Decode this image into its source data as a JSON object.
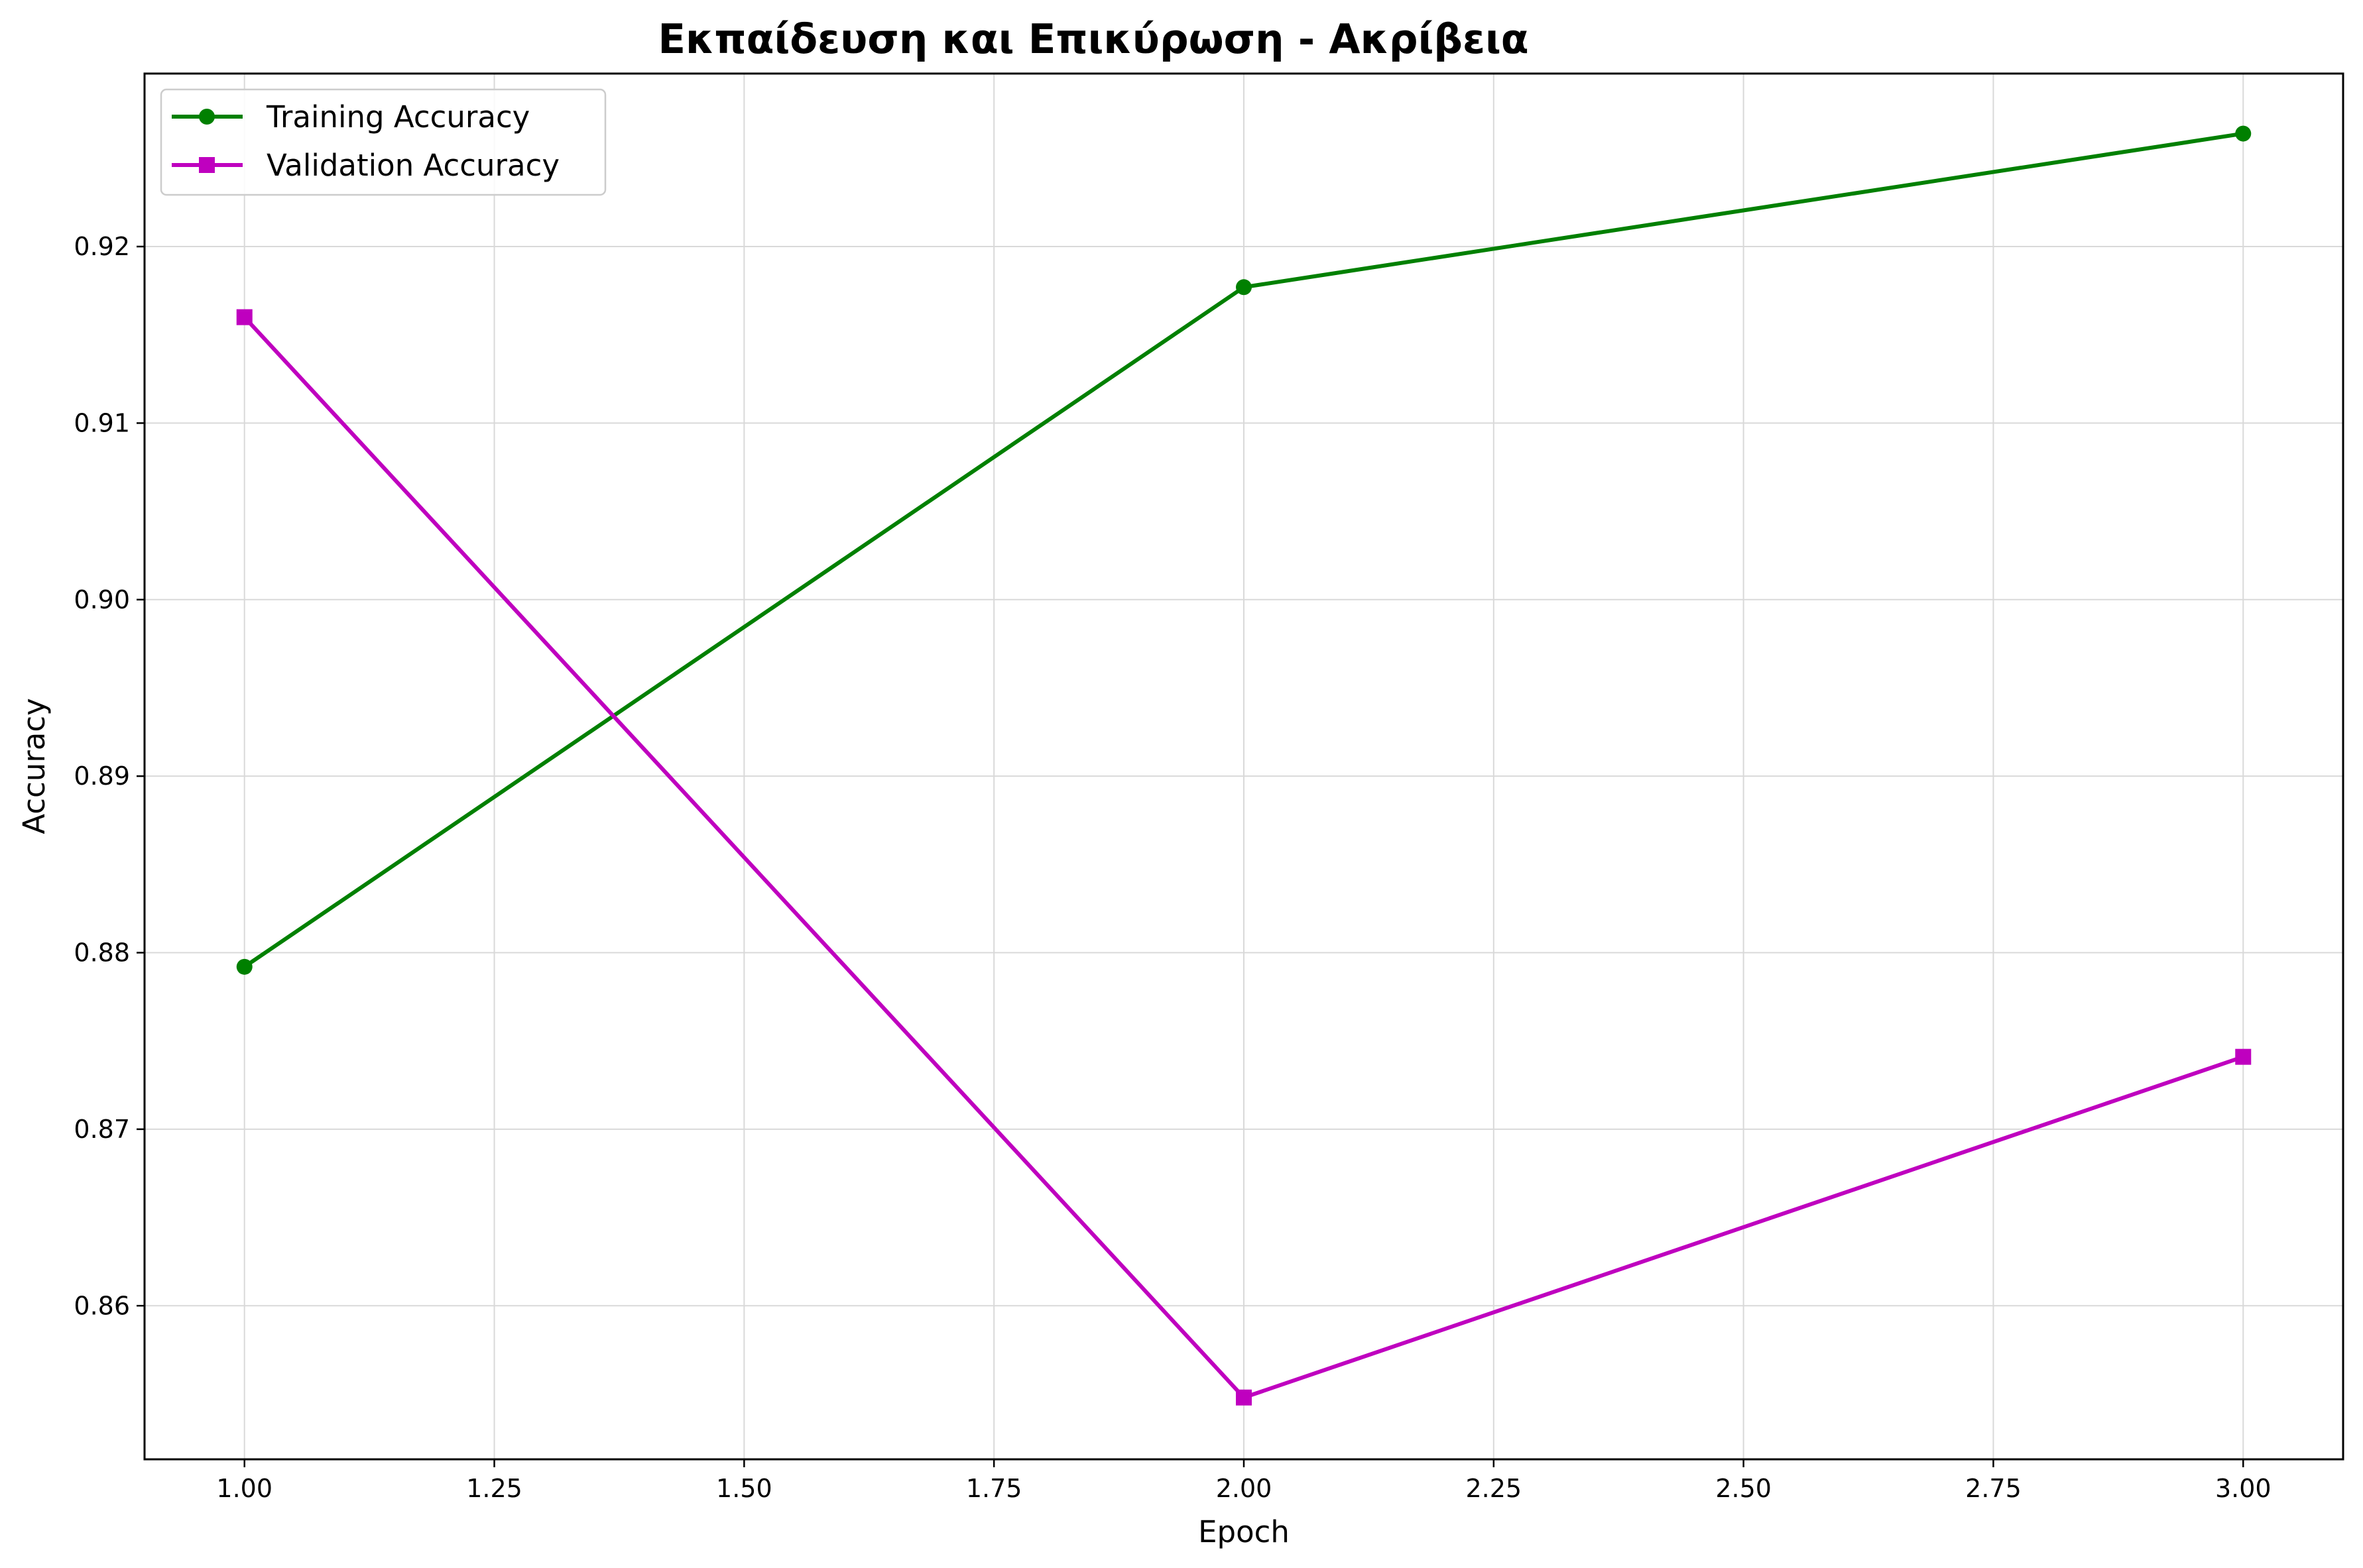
{
  "chart_data": {
    "type": "line",
    "title": "Εκπαίδευση και Επικύρωση - Ακρίβεια",
    "xlabel": "Epoch",
    "ylabel": "Accuracy",
    "xlim": [
      0.9,
      3.1
    ],
    "ylim": [
      0.8513,
      0.9298
    ],
    "x_ticks": [
      1.0,
      1.25,
      1.5,
      1.75,
      2.0,
      2.25,
      2.5,
      2.75,
      3.0
    ],
    "x_tick_labels": [
      "1.00",
      "1.25",
      "1.50",
      "1.75",
      "2.00",
      "2.25",
      "2.50",
      "2.75",
      "3.00"
    ],
    "y_ticks": [
      0.86,
      0.87,
      0.88,
      0.89,
      0.9,
      0.91,
      0.92
    ],
    "y_tick_labels": [
      "0.86",
      "0.87",
      "0.88",
      "0.89",
      "0.90",
      "0.91",
      "0.92"
    ],
    "grid": true,
    "legend_position": "top-left",
    "x": [
      1.0,
      2.0,
      3.0
    ],
    "series": [
      {
        "name": "Training Accuracy",
        "values": [
          0.8792,
          0.9177,
          0.9264
        ],
        "color": "#008000",
        "marker": "circle"
      },
      {
        "name": "Validation Accuracy",
        "values": [
          0.916,
          0.8548,
          0.8741
        ],
        "color": "#bf00bf",
        "marker": "square"
      }
    ]
  }
}
